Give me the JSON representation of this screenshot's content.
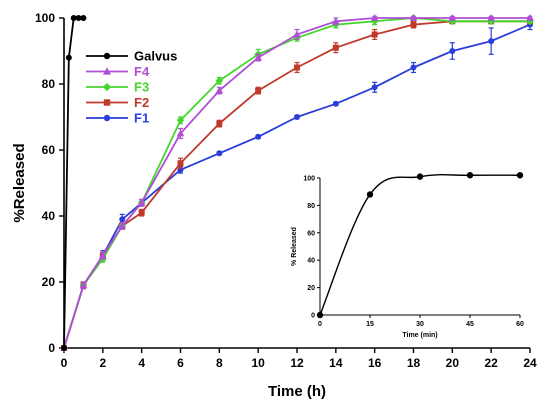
{
  "chart_data": [
    {
      "type": "line",
      "xlabel": "Time (h)",
      "ylabel": "%Released",
      "xlim": [
        0,
        24
      ],
      "ylim": [
        0,
        100
      ],
      "xticks": [
        0,
        2,
        4,
        6,
        8,
        10,
        12,
        14,
        16,
        18,
        20,
        22,
        24
      ],
      "yticks": [
        0,
        20,
        40,
        60,
        80,
        100
      ],
      "legend_position": "top-left",
      "grid": false,
      "series": [
        {
          "name": "Galvus",
          "color": "#000000",
          "marker": "circle",
          "x": [
            0,
            0.25,
            0.5,
            0.75,
            1
          ],
          "y": [
            0,
            88,
            100,
            100,
            100
          ],
          "err": [
            0,
            0,
            0,
            0,
            0
          ]
        },
        {
          "name": "F4",
          "color": "#b04fd6",
          "marker": "triangle",
          "x": [
            0,
            1,
            2,
            3,
            4,
            6,
            8,
            10,
            12,
            14,
            16,
            18,
            20,
            22,
            24
          ],
          "y": [
            0,
            19,
            28,
            37,
            44,
            65,
            78,
            88,
            95,
            99,
            100,
            100,
            100,
            100,
            100
          ],
          "err": [
            0,
            1,
            1,
            1,
            1,
            1.5,
            1,
            1,
            1.5,
            1,
            0.5,
            0.5,
            0.5,
            0.5,
            0.5
          ]
        },
        {
          "name": "F3",
          "color": "#44d62c",
          "marker": "diamond",
          "x": [
            0,
            1,
            2,
            3,
            4,
            6,
            8,
            10,
            12,
            14,
            16,
            18,
            20,
            22,
            24
          ],
          "y": [
            0,
            19,
            27,
            37,
            44,
            69,
            81,
            89,
            94,
            98,
            99,
            100,
            99,
            99,
            99
          ],
          "err": [
            0,
            1,
            1,
            1,
            1,
            1,
            1,
            1.5,
            1,
            1,
            1,
            0.5,
            0.5,
            0.5,
            0.5
          ]
        },
        {
          "name": "F2",
          "color": "#c0392b",
          "marker": "square",
          "x": [
            0,
            1,
            2,
            3,
            4,
            6,
            8,
            10,
            12,
            14,
            16,
            18,
            20,
            22,
            24
          ],
          "y": [
            0,
            19,
            28,
            37,
            41,
            56,
            68,
            78,
            85,
            91,
            95,
            98,
            99,
            99,
            99
          ],
          "err": [
            0,
            1,
            1,
            1,
            1,
            1.5,
            1,
            1,
            1.5,
            1.5,
            1.5,
            1,
            0.5,
            0.5,
            0.5
          ]
        },
        {
          "name": "F1",
          "color": "#2a3fd9",
          "marker": "circle",
          "x": [
            0,
            1,
            2,
            3,
            4,
            6,
            8,
            10,
            12,
            14,
            16,
            18,
            20,
            22,
            24
          ],
          "y": [
            0,
            19,
            28,
            39,
            44,
            54,
            59,
            64,
            70,
            74,
            79,
            85,
            90,
            93,
            98
          ],
          "err": [
            0,
            1,
            1.5,
            1.5,
            1,
            1,
            0.5,
            0.5,
            0.5,
            0.5,
            1.5,
            1.5,
            2.5,
            4,
            1.5
          ]
        }
      ]
    },
    {
      "type": "line",
      "xlabel": "Time (min)",
      "ylabel": "% Released",
      "xlim": [
        0,
        60
      ],
      "ylim": [
        0,
        100
      ],
      "xticks": [
        0,
        15,
        30,
        45,
        60
      ],
      "yticks": [
        0,
        20,
        40,
        60,
        80,
        100
      ],
      "grid": false,
      "series": [
        {
          "color": "#000000",
          "marker": "circle",
          "x": [
            0,
            15,
            30,
            45,
            60
          ],
          "y": [
            0,
            88,
            101,
            102,
            102
          ]
        }
      ]
    }
  ]
}
